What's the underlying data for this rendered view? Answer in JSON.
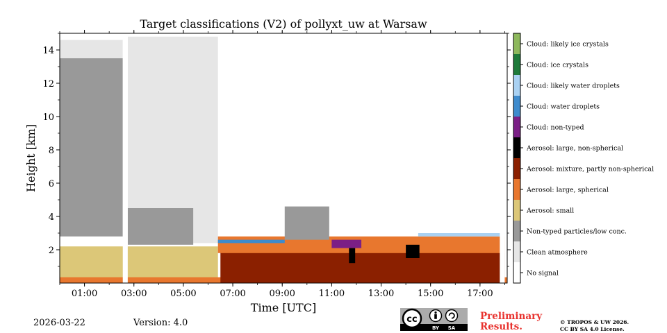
{
  "chart_data": {
    "type": "heatmap",
    "title": "Target classifications (V2) of pollyxt_uw at Warsaw",
    "xlabel": "Time [UTC]",
    "ylabel": "Height [km]",
    "xlim": [
      0.0,
      18.1
    ],
    "ylim": [
      0.0,
      15.0
    ],
    "x_ticks": [
      1,
      3,
      5,
      7,
      9,
      11,
      13,
      15,
      17
    ],
    "x_tick_labels": [
      "01:00",
      "03:00",
      "05:00",
      "07:00",
      "09:00",
      "11:00",
      "13:00",
      "15:00",
      "17:00"
    ],
    "y_ticks": [
      2,
      4,
      6,
      8,
      10,
      12,
      14
    ],
    "y_tick_labels": [
      "2",
      "4",
      "6",
      "8",
      "10",
      "12",
      "14"
    ],
    "classes": [
      {
        "label": "No signal",
        "color": "#ffffff"
      },
      {
        "label": "Clean atmosphere",
        "color": "#e6e6e6"
      },
      {
        "label": "Non-typed particles/low conc.",
        "color": "#999999"
      },
      {
        "label": "Aerosol: small",
        "color": "#dcc778"
      },
      {
        "label": "Aerosol: large, spherical",
        "color": "#e8772e"
      },
      {
        "label": "Aerosol: mixture, partly non-spherical",
        "color": "#8b2000"
      },
      {
        "label": "Aerosol: large, non-spherical",
        "color": "#000000"
      },
      {
        "label": "Cloud: non-typed",
        "color": "#7b1f86"
      },
      {
        "label": "Cloud: water droplets",
        "color": "#3e8bcd"
      },
      {
        "label": "Cloud: likely water droplets",
        "color": "#a9d1f2"
      },
      {
        "label": "Cloud: ice crystals",
        "color": "#1e7a3a"
      },
      {
        "label": "Cloud: likely ice crystals",
        "color": "#8db85c"
      }
    ],
    "regions": [
      {
        "class": "Clean atmosphere",
        "time": [
          0.0,
          2.55
        ],
        "height": [
          4.7,
          14.6
        ]
      },
      {
        "class": "Non-typed particles/low conc.",
        "time": [
          0.0,
          2.55
        ],
        "height": [
          2.8,
          13.5
        ]
      },
      {
        "class": "Clean atmosphere",
        "time": [
          2.75,
          6.4
        ],
        "height": [
          2.4,
          14.8
        ]
      },
      {
        "class": "Non-typed particles/low conc.",
        "time": [
          2.75,
          5.4
        ],
        "height": [
          2.3,
          4.5
        ]
      },
      {
        "class": "Aerosol: small",
        "time": [
          0.0,
          6.4
        ],
        "height": [
          0.3,
          2.2
        ]
      },
      {
        "class": "Aerosol: large, spherical",
        "time": [
          0.0,
          18.1
        ],
        "height": [
          0.0,
          0.35
        ]
      },
      {
        "class": "Aerosol: mixture, partly non-spherical",
        "time": [
          6.5,
          18.0
        ],
        "height": [
          0.0,
          2.3
        ]
      },
      {
        "class": "Aerosol: large, spherical",
        "time": [
          6.4,
          18.0
        ],
        "height": [
          1.8,
          2.8
        ]
      },
      {
        "class": "Non-typed particles/low conc.",
        "time": [
          9.1,
          10.9
        ],
        "height": [
          2.6,
          4.6
        ]
      },
      {
        "class": "Cloud: non-typed",
        "time": [
          11.0,
          12.2
        ],
        "height": [
          2.1,
          2.6
        ]
      },
      {
        "class": "Aerosol: large, non-spherical",
        "time": [
          11.7,
          11.95
        ],
        "height": [
          1.2,
          2.1
        ]
      },
      {
        "class": "Aerosol: large, non-spherical",
        "time": [
          14.0,
          14.55
        ],
        "height": [
          1.5,
          2.3
        ]
      },
      {
        "class": "Cloud: water droplets",
        "time": [
          6.4,
          9.1
        ],
        "height": [
          2.4,
          2.6
        ]
      },
      {
        "class": "Cloud: likely water droplets",
        "time": [
          14.5,
          18.0
        ],
        "height": [
          2.8,
          3.0
        ]
      },
      {
        "class": "No signal",
        "time": [
          2.55,
          2.75
        ],
        "height": [
          0.0,
          15.0
        ]
      },
      {
        "class": "No signal",
        "time": [
          17.8,
          18.0
        ],
        "height": [
          0.0,
          15.0
        ]
      }
    ]
  },
  "footer": {
    "date": "2026-03-22",
    "version": "Version: 4.0",
    "preliminary_line1": "Preliminary",
    "preliminary_line2": "Results.",
    "copyright_line1": "© TROPOS & UW 2026.",
    "copyright_line2": "CC BY SA 4.0 License."
  },
  "license_badge": {
    "symbol": "cc",
    "attribution": "BY",
    "share_alike": "SA"
  }
}
